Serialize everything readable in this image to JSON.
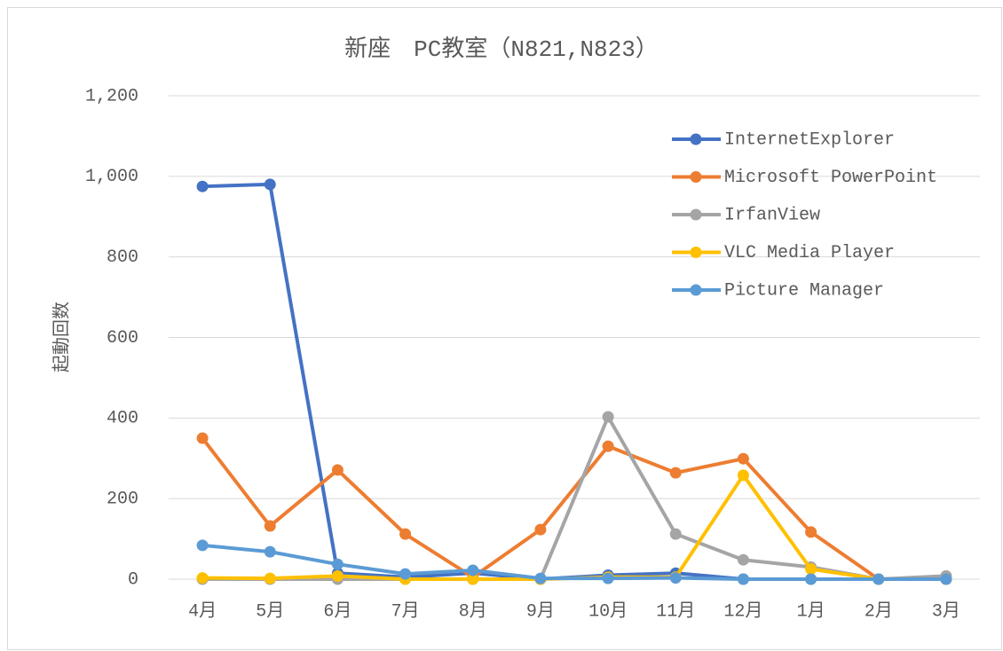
{
  "chart_data": {
    "type": "line",
    "title": "新座　PC教室（N821,N823）",
    "y_label": "起動回数",
    "categories": [
      "4月",
      "5月",
      "6月",
      "7月",
      "8月",
      "9月",
      "10月",
      "11月",
      "12月",
      "1月",
      "2月",
      "3月"
    ],
    "ylim": [
      0,
      1200
    ],
    "yticks": [
      0,
      200,
      400,
      600,
      800,
      {
        "value": 1000,
        "label": "1,000"
      },
      {
        "value": 1200,
        "label": "1,200"
      }
    ],
    "grid": true,
    "legend": "upper right",
    "series": [
      {
        "name": "InternetExplorer",
        "color": "#4472c4",
        "values": [
          975,
          980,
          15,
          5,
          15,
          0,
          10,
          15,
          0,
          0,
          0,
          0
        ]
      },
      {
        "name": "Microsoft PowerPoint",
        "color": "#ed7d31",
        "values": [
          350,
          132,
          271,
          112,
          5,
          123,
          330,
          264,
          299,
          117,
          0,
          0
        ]
      },
      {
        "name": "IrfanView",
        "color": "#a5a5a5",
        "values": [
          0,
          0,
          0,
          0,
          0,
          0,
          403,
          112,
          48,
          30,
          0,
          8
        ]
      },
      {
        "name": "VLC Media Player",
        "color": "#ffc000",
        "values": [
          3,
          2,
          8,
          0,
          0,
          0,
          5,
          5,
          258,
          25,
          0,
          0
        ]
      },
      {
        "name": "Picture Manager",
        "color": "#5b9bd5",
        "values": [
          84,
          68,
          37,
          13,
          22,
          2,
          2,
          3,
          0,
          0,
          0,
          0
        ]
      }
    ]
  }
}
